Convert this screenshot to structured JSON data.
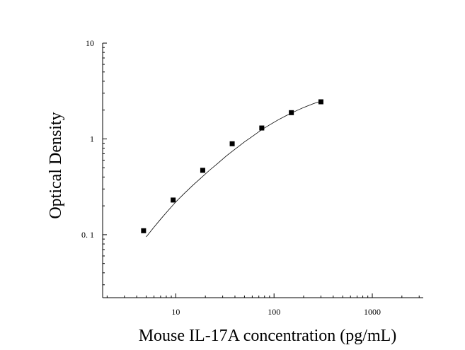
{
  "chart_data": {
    "type": "scatter",
    "title": "",
    "xlabel": "Mouse IL-17A concentration (pg/mL)",
    "ylabel": "Optical Density",
    "x_scale": "log",
    "y_scale": "log",
    "xlim": [
      1.8,
      3300
    ],
    "ylim": [
      0.022,
      10
    ],
    "x_ticks": [
      {
        "value": 10,
        "label": "10"
      },
      {
        "value": 100,
        "label": "100"
      },
      {
        "value": 1000,
        "label": "1000"
      }
    ],
    "y_ticks": [
      {
        "value": 0.1,
        "label": "0. 1"
      },
      {
        "value": 1,
        "label": "1"
      },
      {
        "value": 10,
        "label": "10"
      }
    ],
    "grid": false,
    "legend": "none",
    "colors": {
      "axis": "#000000",
      "marker": "#000000",
      "curve": "#000000"
    },
    "series": [
      {
        "marker": "square",
        "points": [
          {
            "x": 4.7,
            "y": 0.11
          },
          {
            "x": 9.4,
            "y": 0.23
          },
          {
            "x": 18.8,
            "y": 0.47
          },
          {
            "x": 37.5,
            "y": 0.89
          },
          {
            "x": 75,
            "y": 1.3
          },
          {
            "x": 150,
            "y": 1.88
          },
          {
            "x": 300,
            "y": 2.44
          }
        ]
      }
    ],
    "fit_curve": {
      "x": [
        5,
        6,
        7,
        8,
        10,
        12,
        15,
        18,
        22,
        27,
        33,
        40,
        50,
        60,
        75,
        90,
        110,
        130,
        150,
        180,
        210,
        250,
        300
      ],
      "y": [
        0.095,
        0.12,
        0.145,
        0.17,
        0.22,
        0.265,
        0.33,
        0.39,
        0.47,
        0.56,
        0.67,
        0.78,
        0.93,
        1.06,
        1.25,
        1.4,
        1.58,
        1.73,
        1.86,
        2.03,
        2.17,
        2.33,
        2.48
      ]
    }
  }
}
